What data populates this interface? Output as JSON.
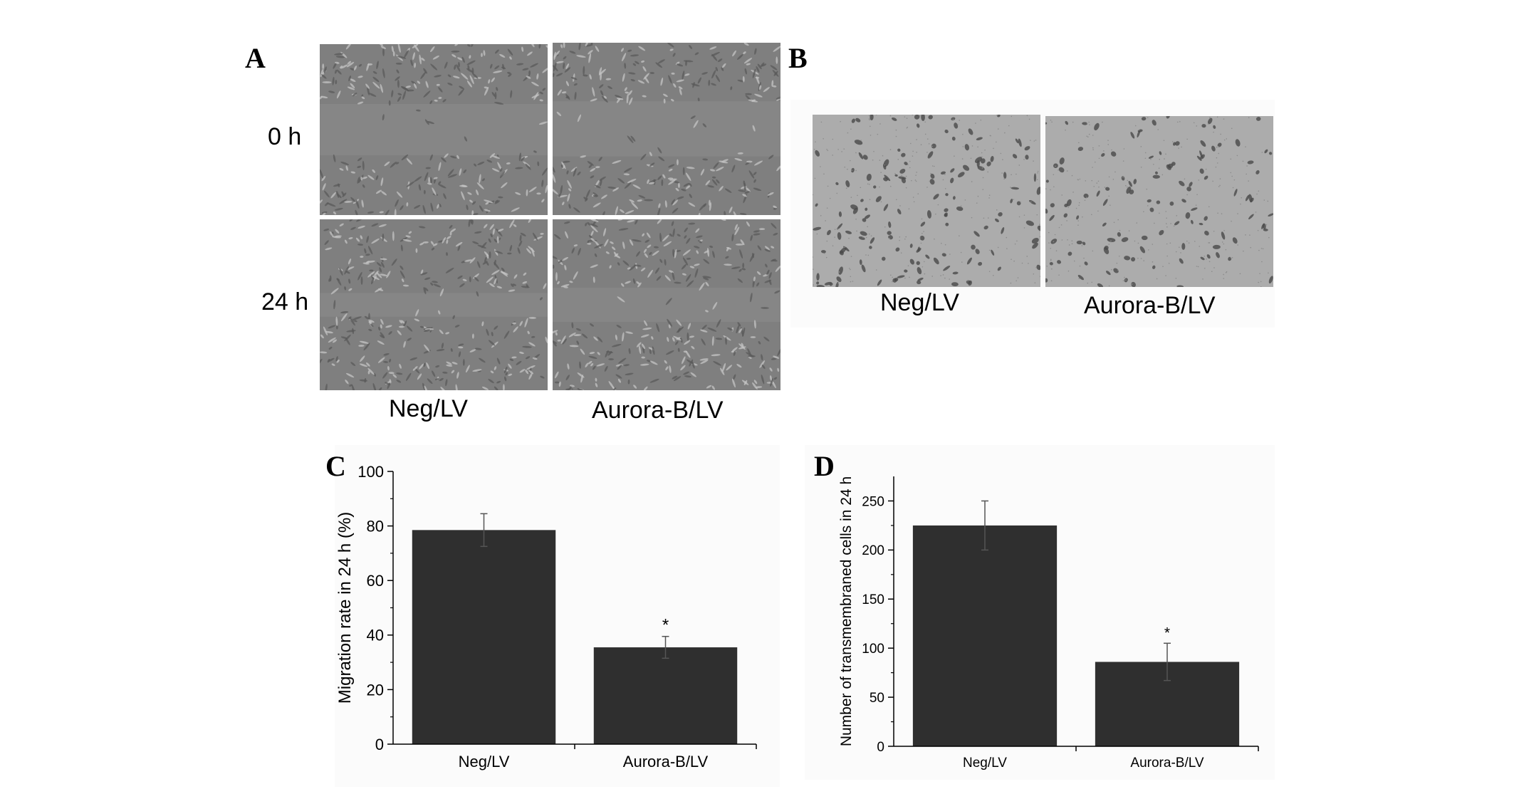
{
  "panels": {
    "a": {
      "letter": "A",
      "row_labels": [
        "0 h",
        "24 h"
      ],
      "col_labels": [
        "Neg/LV",
        "Aurora-B/LV"
      ]
    },
    "b": {
      "letter": "B",
      "col_labels": [
        "Neg/LV",
        "Aurora-B/LV"
      ]
    },
    "c": {
      "letter": "C"
    },
    "d": {
      "letter": "D"
    }
  },
  "colors": {
    "bar": "#2f2f2f",
    "axis": "#000000",
    "micrograph_a": "#8c8c8c",
    "micrograph_b": "#a9a9a9"
  },
  "chart_data": [
    {
      "type": "bar",
      "panel": "C",
      "categories": [
        "Neg/LV",
        "Aurora-B/LV"
      ],
      "values": [
        78.5,
        35.5
      ],
      "errors": [
        6,
        4
      ],
      "significance": [
        "",
        "*"
      ],
      "xlabel": "",
      "ylabel": "Migration rate in 24 h (%)",
      "ylim": [
        0,
        100
      ],
      "yticks": [
        0,
        20,
        40,
        60,
        80,
        100
      ],
      "grid": false
    },
    {
      "type": "bar",
      "panel": "D",
      "categories": [
        "Neg/LV",
        "Aurora-B/LV"
      ],
      "values": [
        225,
        86
      ],
      "errors": [
        25,
        19
      ],
      "significance": [
        "",
        "*"
      ],
      "xlabel": "",
      "ylabel": "Number of transmembraned cells in 24 h",
      "ylim": [
        0,
        275
      ],
      "yticks": [
        0,
        50,
        100,
        150,
        200,
        250
      ],
      "grid": false
    }
  ]
}
